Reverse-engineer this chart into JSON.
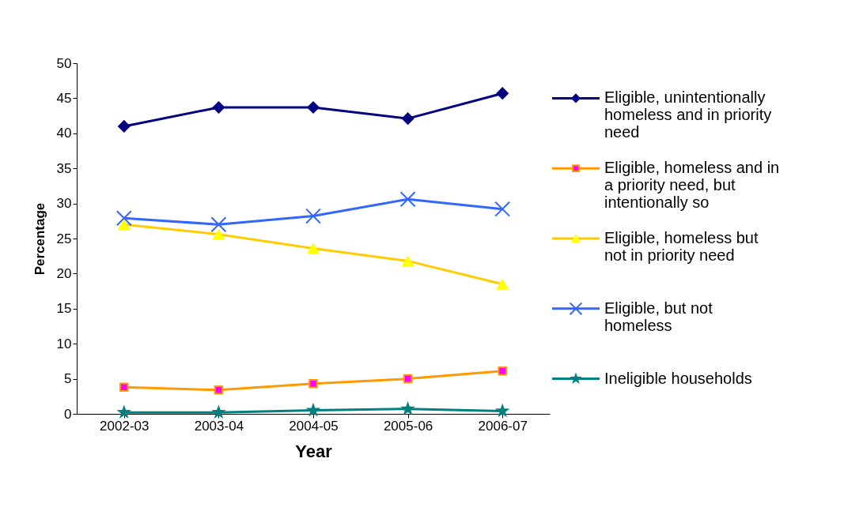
{
  "chart_data": {
    "type": "line",
    "xlabel": "Year",
    "ylabel": "Percentage",
    "categories": [
      "2002-03",
      "2003-04",
      "2004-05",
      "2005-06",
      "2006-07"
    ],
    "series": [
      {
        "name": "Eligible, unintentionally homeless and in priority need",
        "color": "#000080",
        "marker": "diamond",
        "values": [
          41.0,
          43.7,
          43.7,
          42.1,
          45.7
        ]
      },
      {
        "name": "Eligible, homeless and in a priority need, but intentionally so",
        "color": "#ff9900",
        "marker": "square",
        "values": [
          3.8,
          3.4,
          4.3,
          5.0,
          6.1
        ]
      },
      {
        "name": "Eligible, homeless but not in priority need",
        "color": "#ffcc00",
        "marker": "triangle",
        "values": [
          27.0,
          25.6,
          23.6,
          21.8,
          18.5
        ]
      },
      {
        "name": "Eligible, but not homeless",
        "color": "#3366ff",
        "marker": "cross",
        "values": [
          27.9,
          27.0,
          28.2,
          30.6,
          29.2
        ]
      },
      {
        "name": "Ineligible households",
        "color": "#008080",
        "marker": "star",
        "values": [
          0.2,
          0.2,
          0.5,
          0.7,
          0.4
        ]
      }
    ],
    "ylim": [
      0,
      50
    ],
    "yticks": [
      0,
      5,
      10,
      15,
      20,
      25,
      30,
      35,
      40,
      45,
      50
    ],
    "grid": false,
    "legend": "right",
    "line_style": "solid"
  }
}
